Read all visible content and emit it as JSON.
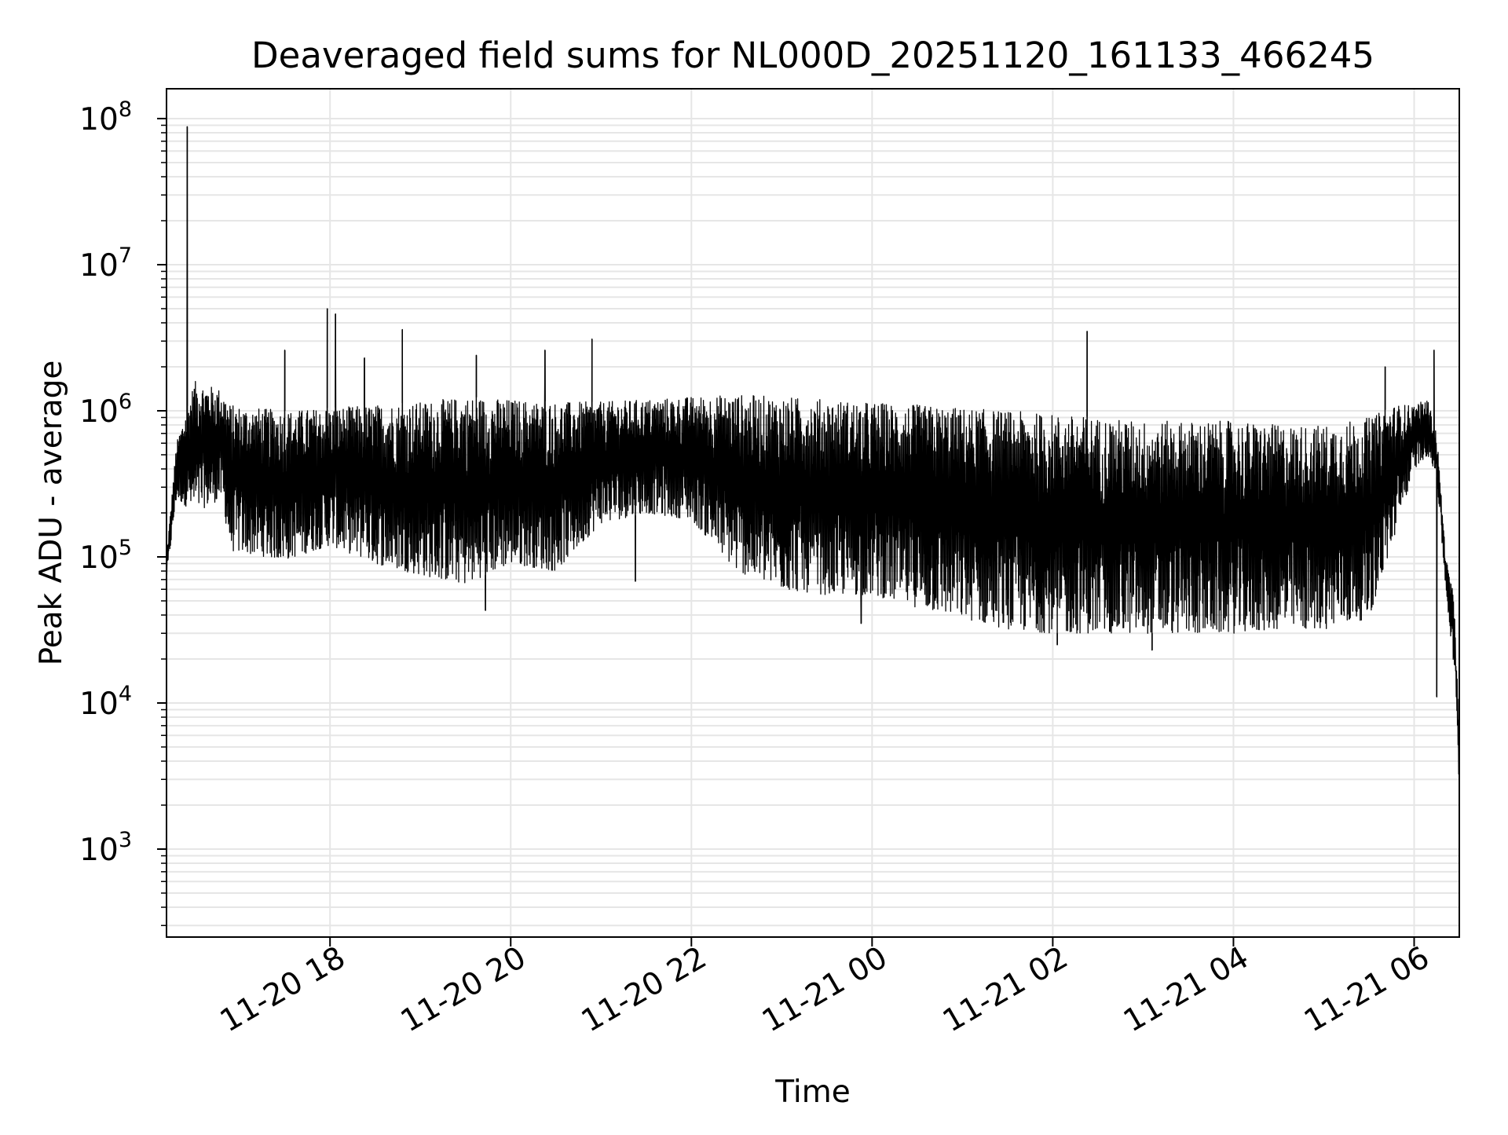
{
  "chart_data": {
    "type": "line",
    "title": "Deaveraged field sums for NL000D_20251120_161133_466245",
    "xlabel": "Time",
    "ylabel": "Peak ADU - average",
    "yscale": "log",
    "ylim": [
      250,
      160000000
    ],
    "xlim_hours": [
      16.19,
      30.5
    ],
    "grid": true,
    "line_color": "#000000",
    "grid_color": "#e6e6e6",
    "x_ticks": [
      {
        "label": "11-20 18",
        "hour": 18
      },
      {
        "label": "11-20 20",
        "hour": 20
      },
      {
        "label": "11-20 22",
        "hour": 22
      },
      {
        "label": "11-21 00",
        "hour": 24
      },
      {
        "label": "11-21 02",
        "hour": 26
      },
      {
        "label": "11-21 04",
        "hour": 28
      },
      {
        "label": "11-21 06",
        "hour": 30
      }
    ],
    "y_ticks": [
      {
        "base": "10",
        "exp": "3",
        "value": 1000
      },
      {
        "base": "10",
        "exp": "4",
        "value": 10000
      },
      {
        "base": "10",
        "exp": "5",
        "value": 100000
      },
      {
        "base": "10",
        "exp": "6",
        "value": 1000000
      },
      {
        "base": "10",
        "exp": "7",
        "value": 10000000
      },
      {
        "base": "10",
        "exp": "8",
        "value": 100000000
      }
    ],
    "series": [
      {
        "name": "Deaveraged field sums",
        "envelope": [
          {
            "hour": 16.19,
            "low": 70000,
            "high": 100000
          },
          {
            "hour": 16.3,
            "low": 250000,
            "high": 600000
          },
          {
            "hour": 16.5,
            "low": 200000,
            "high": 1600000
          },
          {
            "hour": 16.8,
            "low": 250000,
            "high": 1400000
          },
          {
            "hour": 16.9,
            "low": 110000,
            "high": 1100000
          },
          {
            "hour": 17.5,
            "low": 95000,
            "high": 1000000
          },
          {
            "hour": 18.0,
            "low": 120000,
            "high": 1050000
          },
          {
            "hour": 18.5,
            "low": 90000,
            "high": 1100000
          },
          {
            "hour": 19.0,
            "low": 75000,
            "high": 1150000
          },
          {
            "hour": 19.5,
            "low": 65000,
            "high": 1250000
          },
          {
            "hour": 20.0,
            "low": 90000,
            "high": 1200000
          },
          {
            "hour": 20.5,
            "low": 80000,
            "high": 1150000
          },
          {
            "hour": 21.0,
            "low": 170000,
            "high": 1150000
          },
          {
            "hour": 21.5,
            "low": 200000,
            "high": 1200000
          },
          {
            "hour": 22.0,
            "low": 180000,
            "high": 1250000
          },
          {
            "hour": 22.5,
            "low": 80000,
            "high": 1300000
          },
          {
            "hour": 23.0,
            "low": 60000,
            "high": 1250000
          },
          {
            "hour": 23.5,
            "low": 55000,
            "high": 1200000
          },
          {
            "hour": 24.0,
            "low": 55000,
            "high": 1150000
          },
          {
            "hour": 24.5,
            "low": 45000,
            "high": 1100000
          },
          {
            "hour": 25.0,
            "low": 38000,
            "high": 1050000
          },
          {
            "hour": 25.5,
            "low": 32000,
            "high": 1000000
          },
          {
            "hour": 26.0,
            "low": 30000,
            "high": 950000
          },
          {
            "hour": 26.5,
            "low": 30000,
            "high": 900000
          },
          {
            "hour": 27.0,
            "low": 30000,
            "high": 850000
          },
          {
            "hour": 27.5,
            "low": 30000,
            "high": 850000
          },
          {
            "hour": 28.0,
            "low": 30000,
            "high": 850000
          },
          {
            "hour": 28.5,
            "low": 32000,
            "high": 800000
          },
          {
            "hour": 29.0,
            "low": 32000,
            "high": 800000
          },
          {
            "hour": 29.5,
            "low": 38000,
            "high": 900000
          },
          {
            "hour": 29.8,
            "low": 150000,
            "high": 1100000
          },
          {
            "hour": 30.0,
            "low": 400000,
            "high": 1100000
          },
          {
            "hour": 30.15,
            "low": 500000,
            "high": 1200000
          },
          {
            "hour": 30.25,
            "low": 350000,
            "high": 700000
          },
          {
            "hour": 30.35,
            "low": 60000,
            "high": 100000
          },
          {
            "hour": 30.45,
            "low": 15000,
            "high": 50000
          },
          {
            "hour": 30.5,
            "low": 2500,
            "high": 5000
          }
        ],
        "spikes": [
          {
            "hour": 16.42,
            "value": 88000000
          },
          {
            "hour": 17.5,
            "value": 2600000
          },
          {
            "hour": 17.97,
            "value": 5000000
          },
          {
            "hour": 18.06,
            "value": 4600000
          },
          {
            "hour": 18.38,
            "value": 2300000
          },
          {
            "hour": 18.8,
            "value": 3600000
          },
          {
            "hour": 19.62,
            "value": 2400000
          },
          {
            "hour": 20.38,
            "value": 2600000
          },
          {
            "hour": 20.9,
            "value": 3100000
          },
          {
            "hour": 26.38,
            "value": 3500000
          },
          {
            "hour": 29.68,
            "value": 2000000
          },
          {
            "hour": 30.22,
            "value": 2600000
          }
        ],
        "dips": [
          {
            "hour": 19.72,
            "value": 43000
          },
          {
            "hour": 21.38,
            "value": 68000
          },
          {
            "hour": 23.88,
            "value": 35000
          },
          {
            "hour": 26.05,
            "value": 25000
          },
          {
            "hour": 27.1,
            "value": 23000
          },
          {
            "hour": 30.25,
            "value": 11000
          },
          {
            "hour": 30.5,
            "value": 2200
          }
        ]
      }
    ]
  }
}
